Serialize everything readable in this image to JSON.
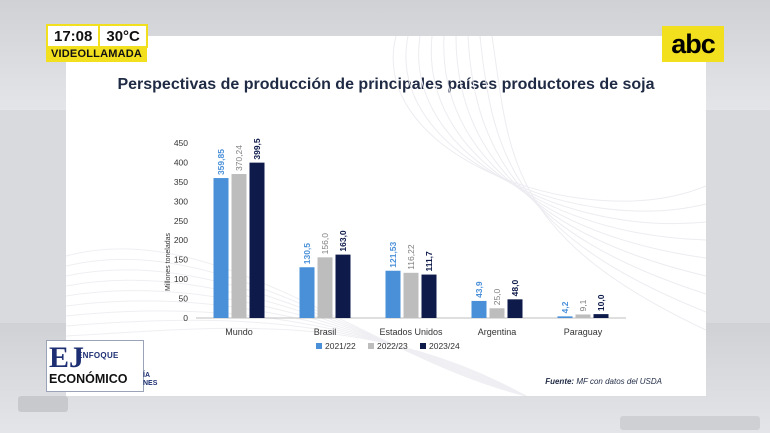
{
  "overlay": {
    "time": "17:08",
    "temperature": "30°C",
    "live_tag": "VIDEOLLAMADA",
    "channel_logo": "abc",
    "show_logo_top": "ENFOQUE",
    "show_logo_main": "ECONÓMICO",
    "show_logo_letters": "EJ",
    "show_logo_cut_1": "ÍA",
    "show_logo_cut_2": "NES"
  },
  "slide": {
    "source_label": "Fuente:",
    "source_text": "MF con datos del USDA"
  },
  "colors": {
    "series": [
      "#4a90d9",
      "#bdbdbd",
      "#0d1a4a"
    ],
    "label": [
      "#4a90d9",
      "#7f7f7f",
      "#0d1a4a"
    ],
    "accent": "#f2e01e"
  },
  "chart_data": {
    "type": "bar",
    "title": "Perspectivas de producción de principales países productores de soja",
    "ylabel": "Millones toneladas",
    "xlabel": "",
    "ylim": [
      0,
      450
    ],
    "yticks": [
      "0",
      "50",
      "100",
      "150",
      "200",
      "250",
      "300",
      "350",
      "400",
      "450"
    ],
    "categories": [
      "Mundo",
      "Brasil",
      "Estados Unidos",
      "Argentina",
      "Paraguay"
    ],
    "series": [
      {
        "name": "2021/22",
        "values": [
          359.85,
          130.5,
          121.53,
          43.9,
          4.2
        ],
        "labels": [
          "359,85",
          "130,5",
          "121,53",
          "43,9",
          "4,2"
        ]
      },
      {
        "name": "2022/23",
        "values": [
          370.24,
          156.0,
          116.22,
          25.0,
          9.1
        ],
        "labels": [
          "370,24",
          "156,0",
          "116,22",
          "25,0",
          "9,1"
        ]
      },
      {
        "name": "2023/24",
        "values": [
          399.5,
          163.0,
          111.7,
          48.0,
          10.0
        ],
        "labels": [
          "399,5",
          "163,0",
          "111,7",
          "48,0",
          "10,0"
        ]
      }
    ],
    "legend": "bottom"
  }
}
